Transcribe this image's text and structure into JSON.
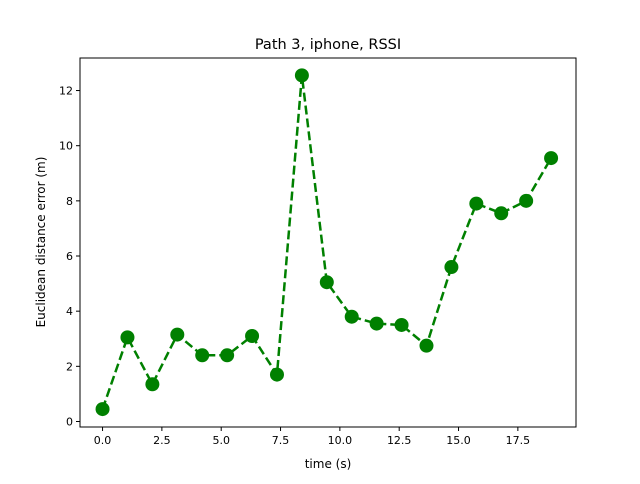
{
  "chart_data": {
    "type": "line",
    "title": "Path 3, iphone, RSSI",
    "xlabel": "time (s)",
    "ylabel": "Euclidean distance error (m)",
    "xlim": [
      -0.95,
      19.95
    ],
    "ylim": [
      -0.2,
      13.18
    ],
    "xticks": [
      0.0,
      2.5,
      5.0,
      7.5,
      10.0,
      12.5,
      15.0,
      17.5
    ],
    "xtick_labels": [
      "0.0",
      "2.5",
      "5.0",
      "7.5",
      "10.0",
      "12.5",
      "15.0",
      "17.5"
    ],
    "yticks": [
      0,
      2,
      4,
      6,
      8,
      10,
      12
    ],
    "ytick_labels": [
      "0",
      "2",
      "4",
      "6",
      "8",
      "10",
      "12"
    ],
    "grid": false,
    "series": [
      {
        "color": "#008000",
        "line_style": "dashed",
        "marker": "circle",
        "x": [
          0.0,
          1.05,
          2.1,
          3.15,
          4.2,
          5.25,
          6.3,
          7.35,
          8.4,
          9.45,
          10.5,
          11.55,
          12.6,
          13.65,
          14.7,
          15.75,
          16.8,
          17.85,
          18.9
        ],
        "y": [
          0.45,
          3.05,
          1.35,
          3.15,
          2.4,
          2.4,
          3.1,
          1.7,
          12.55,
          5.05,
          3.8,
          3.55,
          3.5,
          2.75,
          5.6,
          7.9,
          7.55,
          8.0,
          9.55
        ]
      }
    ]
  }
}
